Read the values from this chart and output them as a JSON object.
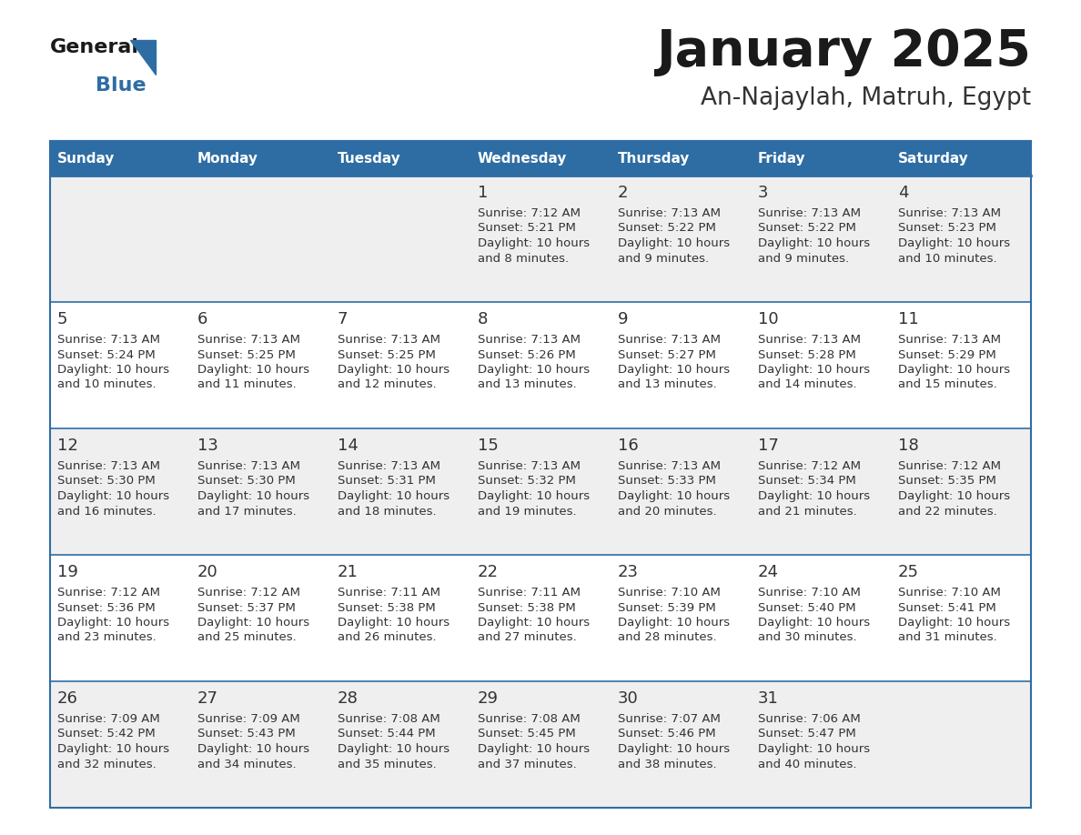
{
  "title": "January 2025",
  "subtitle": "An-Najaylah, Matruh, Egypt",
  "days_of_week": [
    "Sunday",
    "Monday",
    "Tuesday",
    "Wednesday",
    "Thursday",
    "Friday",
    "Saturday"
  ],
  "header_bg": "#2e6da4",
  "header_text_color": "#ffffff",
  "cell_bg_odd": "#efefef",
  "cell_bg_even": "#ffffff",
  "day_num_color": "#333333",
  "info_color": "#333333",
  "separator_color": "#2e6da4",
  "title_color": "#1a1a1a",
  "subtitle_color": "#333333",
  "logo_general_color": "#1a1a1a",
  "logo_blue_color": "#2e6da4",
  "fig_width": 11.88,
  "fig_height": 9.18,
  "dpi": 100,
  "calendar_data": [
    [
      null,
      null,
      null,
      {
        "day": 1,
        "sunrise": "7:12 AM",
        "sunset": "5:21 PM",
        "daylight": "10 hours and 8 minutes."
      },
      {
        "day": 2,
        "sunrise": "7:13 AM",
        "sunset": "5:22 PM",
        "daylight": "10 hours and 9 minutes."
      },
      {
        "day": 3,
        "sunrise": "7:13 AM",
        "sunset": "5:22 PM",
        "daylight": "10 hours and 9 minutes."
      },
      {
        "day": 4,
        "sunrise": "7:13 AM",
        "sunset": "5:23 PM",
        "daylight": "10 hours and 10 minutes."
      }
    ],
    [
      {
        "day": 5,
        "sunrise": "7:13 AM",
        "sunset": "5:24 PM",
        "daylight": "10 hours and 10 minutes."
      },
      {
        "day": 6,
        "sunrise": "7:13 AM",
        "sunset": "5:25 PM",
        "daylight": "10 hours and 11 minutes."
      },
      {
        "day": 7,
        "sunrise": "7:13 AM",
        "sunset": "5:25 PM",
        "daylight": "10 hours and 12 minutes."
      },
      {
        "day": 8,
        "sunrise": "7:13 AM",
        "sunset": "5:26 PM",
        "daylight": "10 hours and 13 minutes."
      },
      {
        "day": 9,
        "sunrise": "7:13 AM",
        "sunset": "5:27 PM",
        "daylight": "10 hours and 13 minutes."
      },
      {
        "day": 10,
        "sunrise": "7:13 AM",
        "sunset": "5:28 PM",
        "daylight": "10 hours and 14 minutes."
      },
      {
        "day": 11,
        "sunrise": "7:13 AM",
        "sunset": "5:29 PM",
        "daylight": "10 hours and 15 minutes."
      }
    ],
    [
      {
        "day": 12,
        "sunrise": "7:13 AM",
        "sunset": "5:30 PM",
        "daylight": "10 hours and 16 minutes."
      },
      {
        "day": 13,
        "sunrise": "7:13 AM",
        "sunset": "5:30 PM",
        "daylight": "10 hours and 17 minutes."
      },
      {
        "day": 14,
        "sunrise": "7:13 AM",
        "sunset": "5:31 PM",
        "daylight": "10 hours and 18 minutes."
      },
      {
        "day": 15,
        "sunrise": "7:13 AM",
        "sunset": "5:32 PM",
        "daylight": "10 hours and 19 minutes."
      },
      {
        "day": 16,
        "sunrise": "7:13 AM",
        "sunset": "5:33 PM",
        "daylight": "10 hours and 20 minutes."
      },
      {
        "day": 17,
        "sunrise": "7:12 AM",
        "sunset": "5:34 PM",
        "daylight": "10 hours and 21 minutes."
      },
      {
        "day": 18,
        "sunrise": "7:12 AM",
        "sunset": "5:35 PM",
        "daylight": "10 hours and 22 minutes."
      }
    ],
    [
      {
        "day": 19,
        "sunrise": "7:12 AM",
        "sunset": "5:36 PM",
        "daylight": "10 hours and 23 minutes."
      },
      {
        "day": 20,
        "sunrise": "7:12 AM",
        "sunset": "5:37 PM",
        "daylight": "10 hours and 25 minutes."
      },
      {
        "day": 21,
        "sunrise": "7:11 AM",
        "sunset": "5:38 PM",
        "daylight": "10 hours and 26 minutes."
      },
      {
        "day": 22,
        "sunrise": "7:11 AM",
        "sunset": "5:38 PM",
        "daylight": "10 hours and 27 minutes."
      },
      {
        "day": 23,
        "sunrise": "7:10 AM",
        "sunset": "5:39 PM",
        "daylight": "10 hours and 28 minutes."
      },
      {
        "day": 24,
        "sunrise": "7:10 AM",
        "sunset": "5:40 PM",
        "daylight": "10 hours and 30 minutes."
      },
      {
        "day": 25,
        "sunrise": "7:10 AM",
        "sunset": "5:41 PM",
        "daylight": "10 hours and 31 minutes."
      }
    ],
    [
      {
        "day": 26,
        "sunrise": "7:09 AM",
        "sunset": "5:42 PM",
        "daylight": "10 hours and 32 minutes."
      },
      {
        "day": 27,
        "sunrise": "7:09 AM",
        "sunset": "5:43 PM",
        "daylight": "10 hours and 34 minutes."
      },
      {
        "day": 28,
        "sunrise": "7:08 AM",
        "sunset": "5:44 PM",
        "daylight": "10 hours and 35 minutes."
      },
      {
        "day": 29,
        "sunrise": "7:08 AM",
        "sunset": "5:45 PM",
        "daylight": "10 hours and 37 minutes."
      },
      {
        "day": 30,
        "sunrise": "7:07 AM",
        "sunset": "5:46 PM",
        "daylight": "10 hours and 38 minutes."
      },
      {
        "day": 31,
        "sunrise": "7:06 AM",
        "sunset": "5:47 PM",
        "daylight": "10 hours and 40 minutes."
      },
      null
    ]
  ]
}
